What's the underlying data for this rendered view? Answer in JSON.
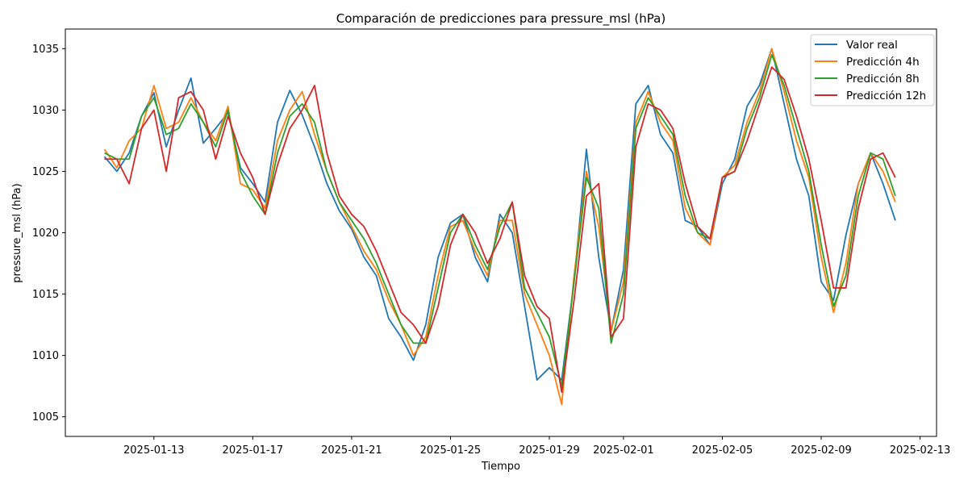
{
  "chart_data": {
    "type": "line",
    "title": "Comparación de predicciones para pressure_msl (hPa)",
    "xlabel": "Tiempo",
    "ylabel": "pressure_msl (hPa)",
    "x_tick_labels": [
      "2025-01-13",
      "2025-01-17",
      "2025-01-21",
      "2025-01-25",
      "2025-01-29",
      "2025-02-01",
      "2025-02-05",
      "2025-02-09",
      "2025-02-13"
    ],
    "y_tick_labels": [
      "1005",
      "1010",
      "1015",
      "1020",
      "1025",
      "1030",
      "1035"
    ],
    "xlim": [
      "2025-01-09T10:00",
      "2025-02-13T16:00"
    ],
    "ylim": [
      1003.4,
      1036.6
    ],
    "grid": false,
    "legend_position": "top-right",
    "x": [
      "2025-01-11",
      "2025-01-11T12:00",
      "2025-01-12",
      "2025-01-12T12:00",
      "2025-01-13",
      "2025-01-13T12:00",
      "2025-01-14",
      "2025-01-14T12:00",
      "2025-01-15",
      "2025-01-15T12:00",
      "2025-01-16",
      "2025-01-16T12:00",
      "2025-01-17",
      "2025-01-17T12:00",
      "2025-01-18",
      "2025-01-18T12:00",
      "2025-01-19",
      "2025-01-19T12:00",
      "2025-01-20",
      "2025-01-20T12:00",
      "2025-01-21",
      "2025-01-21T12:00",
      "2025-01-22",
      "2025-01-22T12:00",
      "2025-01-23",
      "2025-01-23T12:00",
      "2025-01-24",
      "2025-01-24T12:00",
      "2025-01-25",
      "2025-01-25T12:00",
      "2025-01-26",
      "2025-01-26T12:00",
      "2025-01-27",
      "2025-01-27T12:00",
      "2025-01-28",
      "2025-01-28T12:00",
      "2025-01-29",
      "2025-01-29T12:00",
      "2025-01-30",
      "2025-01-30T12:00",
      "2025-01-31",
      "2025-01-31T12:00",
      "2025-02-01",
      "2025-02-01T12:00",
      "2025-02-02",
      "2025-02-02T12:00",
      "2025-02-03",
      "2025-02-03T12:00",
      "2025-02-04",
      "2025-02-04T12:00",
      "2025-02-05",
      "2025-02-05T12:00",
      "2025-02-06",
      "2025-02-06T12:00",
      "2025-02-07",
      "2025-02-07T12:00",
      "2025-02-08",
      "2025-02-08T12:00",
      "2025-02-09",
      "2025-02-09T12:00",
      "2025-02-10",
      "2025-02-10T12:00",
      "2025-02-11",
      "2025-02-11T12:00",
      "2025-02-12"
    ],
    "series": [
      {
        "name": "Valor real",
        "color": "#1f77b4",
        "values": [
          1026.2,
          1025.0,
          1026.5,
          1029.5,
          1031.4,
          1027.0,
          1030.0,
          1032.6,
          1027.3,
          1028.5,
          1029.8,
          1025.3,
          1024.0,
          1022.5,
          1029.0,
          1031.6,
          1029.6,
          1027.0,
          1024.0,
          1021.8,
          1020.3,
          1018.0,
          1016.5,
          1013.0,
          1011.5,
          1009.6,
          1012.5,
          1018.0,
          1020.8,
          1021.5,
          1018.0,
          1016.0,
          1021.5,
          1020.0,
          1014.0,
          1008.0,
          1009.0,
          1008.0,
          1016.0,
          1026.8,
          1018.0,
          1012.0,
          1017.0,
          1030.5,
          1032.0,
          1028.0,
          1026.5,
          1021.0,
          1020.5,
          1019.0,
          1024.0,
          1026.0,
          1030.3,
          1032.0,
          1035.0,
          1030.5,
          1026.0,
          1023.0,
          1016.0,
          1014.5,
          1019.8,
          1024.0,
          1026.5,
          1024.0,
          1021.0
        ]
      },
      {
        "name": "Predicción 4h",
        "color": "#ff7f0e",
        "values": [
          1026.8,
          1025.3,
          1027.5,
          1028.5,
          1032.0,
          1028.5,
          1029.0,
          1031.0,
          1029.0,
          1027.5,
          1030.3,
          1024.0,
          1023.5,
          1022.0,
          1027.5,
          1030.0,
          1031.5,
          1028.0,
          1025.0,
          1022.5,
          1020.5,
          1018.5,
          1017.0,
          1014.5,
          1012.5,
          1010.0,
          1011.5,
          1016.5,
          1020.5,
          1021.0,
          1018.5,
          1016.5,
          1021.0,
          1021.0,
          1015.0,
          1012.5,
          1010.0,
          1006.0,
          1016.5,
          1025.0,
          1020.5,
          1012.0,
          1016.0,
          1029.0,
          1031.5,
          1029.0,
          1027.5,
          1022.0,
          1020.0,
          1019.0,
          1024.5,
          1025.5,
          1029.0,
          1031.5,
          1035.0,
          1031.5,
          1027.5,
          1024.5,
          1018.0,
          1013.5,
          1017.5,
          1024.0,
          1026.5,
          1025.0,
          1022.5
        ]
      },
      {
        "name": "Predicción 8h",
        "color": "#2ca02c",
        "values": [
          1026.5,
          1026.0,
          1026.0,
          1029.5,
          1031.0,
          1028.0,
          1028.5,
          1030.5,
          1029.0,
          1027.0,
          1030.0,
          1025.0,
          1023.0,
          1021.5,
          1026.5,
          1029.5,
          1030.5,
          1029.0,
          1025.0,
          1022.5,
          1021.0,
          1019.5,
          1017.5,
          1015.0,
          1012.5,
          1011.0,
          1011.0,
          1015.5,
          1020.0,
          1021.5,
          1019.0,
          1017.0,
          1020.5,
          1022.5,
          1015.5,
          1013.5,
          1011.5,
          1007.5,
          1016.0,
          1024.5,
          1022.0,
          1011.0,
          1015.0,
          1028.5,
          1031.0,
          1029.5,
          1028.0,
          1023.0,
          1020.0,
          1019.5,
          1024.5,
          1025.0,
          1028.5,
          1031.0,
          1034.5,
          1032.0,
          1028.5,
          1025.0,
          1019.0,
          1014.0,
          1016.5,
          1023.0,
          1026.5,
          1026.0,
          1023.0
        ]
      },
      {
        "name": "Predicción 12h",
        "color": "#d62728",
        "values": [
          1026.0,
          1026.0,
          1024.0,
          1028.5,
          1030.0,
          1025.0,
          1031.0,
          1031.5,
          1030.0,
          1026.0,
          1029.5,
          1026.5,
          1024.5,
          1021.5,
          1025.5,
          1028.5,
          1030.0,
          1032.0,
          1026.5,
          1023.0,
          1021.5,
          1020.5,
          1018.5,
          1016.0,
          1013.5,
          1012.5,
          1011.0,
          1014.0,
          1019.0,
          1021.5,
          1020.0,
          1017.5,
          1019.5,
          1022.5,
          1016.5,
          1014.0,
          1013.0,
          1007.0,
          1014.5,
          1023.0,
          1024.0,
          1011.5,
          1013.0,
          1027.0,
          1030.5,
          1030.0,
          1028.5,
          1024.0,
          1020.5,
          1019.5,
          1024.5,
          1025.0,
          1027.5,
          1030.5,
          1033.5,
          1032.5,
          1029.5,
          1026.0,
          1021.0,
          1015.5,
          1015.5,
          1022.0,
          1026.0,
          1026.5,
          1024.5
        ]
      }
    ]
  }
}
